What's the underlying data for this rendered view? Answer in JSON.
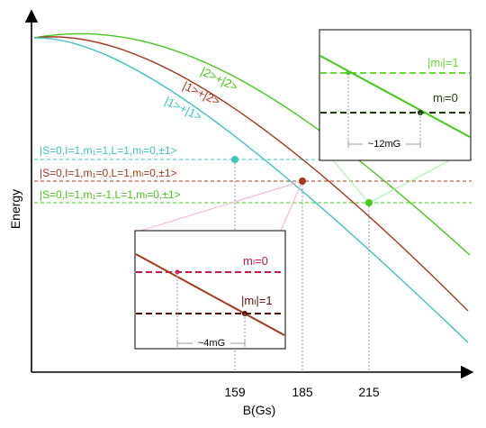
{
  "axes": {
    "x_label": "B(Gs)",
    "y_label": "Energy",
    "x_ticks": [
      "159",
      "185",
      "215"
    ]
  },
  "curves": [
    {
      "label": "|2>+|2>",
      "color": "#44c81a"
    },
    {
      "label": "|1>+|2>",
      "color": "#a8381a"
    },
    {
      "label": "|1>+|1>",
      "color": "#3cc4c0"
    }
  ],
  "thresholds": [
    {
      "label": "|S=0,I=1,m₁=1,L=1,mₗ=0,±1>",
      "color": "#3cc4c0"
    },
    {
      "label": "|S=0,I=1,m₁=0,L=1,mₗ=0,±1>",
      "color": "#a8381a"
    },
    {
      "label": "|S=0,I=1,m₁=-1,L=1,mₗ=0,±1>",
      "color": "#44c81a"
    }
  ],
  "inset_right": {
    "upper_label": "|mₗ|=1",
    "lower_label": "mₗ=0",
    "gap_label": "~12mG"
  },
  "inset_bottom": {
    "upper_label": "mₗ=0",
    "lower_label": "|mₗ|=1",
    "gap_label": "~4mG"
  }
}
